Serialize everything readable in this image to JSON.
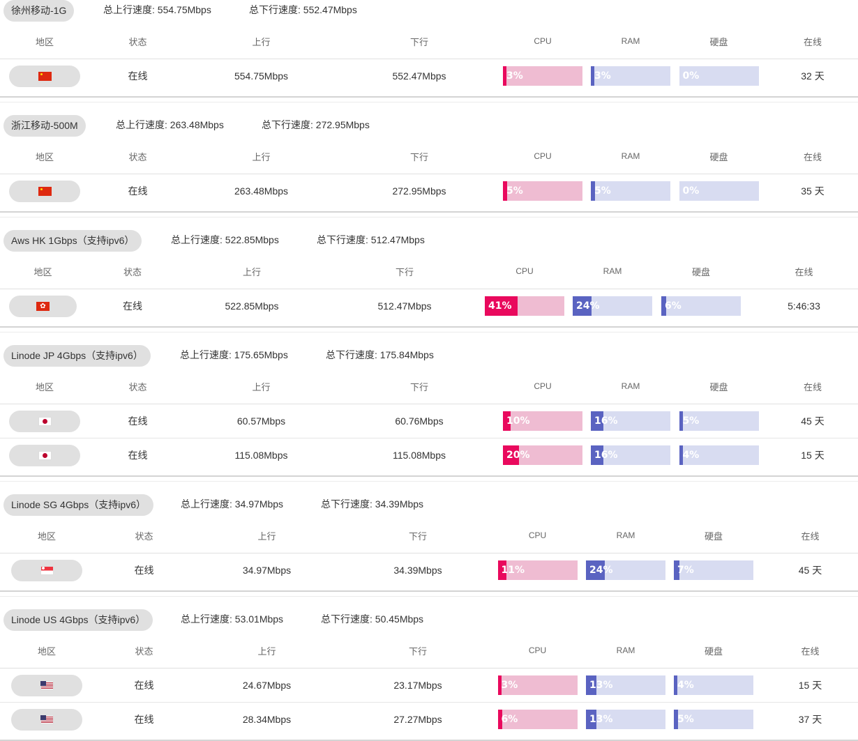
{
  "headers": {
    "region": "地区",
    "status": "状态",
    "up": "上行",
    "down": "下行",
    "cpu": "CPU",
    "ram": "RAM",
    "disk": "硬盘",
    "online": "在线"
  },
  "groups": [
    {
      "title": "徐州移动-1G",
      "total_up": "总上行速度: 554.75Mbps",
      "total_down": "总下行速度: 552.47Mbps",
      "rows": [
        {
          "flag": "cn-flag-icon",
          "status": "在线",
          "up": "554.75Mbps",
          "down": "552.47Mbps",
          "cpu": 3,
          "cpu_label": "3%",
          "ram": 3,
          "ram_label": "3%",
          "disk": 0,
          "disk_label": "0%",
          "online": "32 天"
        }
      ]
    },
    {
      "title": "浙江移动-500M",
      "total_up": "总上行速度: 263.48Mbps",
      "total_down": "总下行速度: 272.95Mbps",
      "rows": [
        {
          "flag": "cn-flag-icon",
          "status": "在线",
          "up": "263.48Mbps",
          "down": "272.95Mbps",
          "cpu": 5,
          "cpu_label": "5%",
          "ram": 5,
          "ram_label": "5%",
          "disk": 0,
          "disk_label": "0%",
          "online": "35 天"
        }
      ]
    },
    {
      "title": "Aws HK 1Gbps（支持ipv6）",
      "total_up": "总上行速度: 522.85Mbps",
      "total_down": "总下行速度: 512.47Mbps",
      "rows": [
        {
          "flag": "hk-flag-icon",
          "status": "在线",
          "up": "522.85Mbps",
          "down": "512.47Mbps",
          "cpu": 41,
          "cpu_label": "41%",
          "ram": 24,
          "ram_label": "24%",
          "disk": 6,
          "disk_label": "6%",
          "online": "5:46:33"
        }
      ]
    },
    {
      "title": "Linode JP 4Gbps（支持ipv6）",
      "total_up": "总上行速度: 175.65Mbps",
      "total_down": "总下行速度: 175.84Mbps",
      "rows": [
        {
          "flag": "jp-flag-icon",
          "status": "在线",
          "up": "60.57Mbps",
          "down": "60.76Mbps",
          "cpu": 10,
          "cpu_label": "10%",
          "ram": 16,
          "ram_label": "16%",
          "disk": 5,
          "disk_label": "5%",
          "online": "45 天"
        },
        {
          "flag": "jp-flag-icon",
          "status": "在线",
          "up": "115.08Mbps",
          "down": "115.08Mbps",
          "cpu": 20,
          "cpu_label": "20%",
          "ram": 16,
          "ram_label": "16%",
          "disk": 4,
          "disk_label": "4%",
          "online": "15 天"
        }
      ]
    },
    {
      "title": "Linode SG 4Gbps（支持ipv6）",
      "total_up": "总上行速度: 34.97Mbps",
      "total_down": "总下行速度: 34.39Mbps",
      "rows": [
        {
          "flag": "sg-flag-icon",
          "status": "在线",
          "up": "34.97Mbps",
          "down": "34.39Mbps",
          "cpu": 11,
          "cpu_label": "11%",
          "ram": 24,
          "ram_label": "24%",
          "disk": 7,
          "disk_label": "7%",
          "online": "45 天"
        }
      ]
    },
    {
      "title": "Linode US 4Gbps（支持ipv6）",
      "total_up": "总上行速度: 53.01Mbps",
      "total_down": "总下行速度: 50.45Mbps",
      "rows": [
        {
          "flag": "us-flag-icon",
          "status": "在线",
          "up": "24.67Mbps",
          "down": "23.17Mbps",
          "cpu": 3,
          "cpu_label": "3%",
          "ram": 13,
          "ram_label": "13%",
          "disk": 4,
          "disk_label": "4%",
          "online": "15 天"
        },
        {
          "flag": "us-flag-icon",
          "status": "在线",
          "up": "28.34Mbps",
          "down": "27.27Mbps",
          "cpu": 6,
          "cpu_label": "6%",
          "ram": 13,
          "ram_label": "13%",
          "disk": 5,
          "disk_label": "5%",
          "online": "37 天"
        }
      ]
    }
  ]
}
